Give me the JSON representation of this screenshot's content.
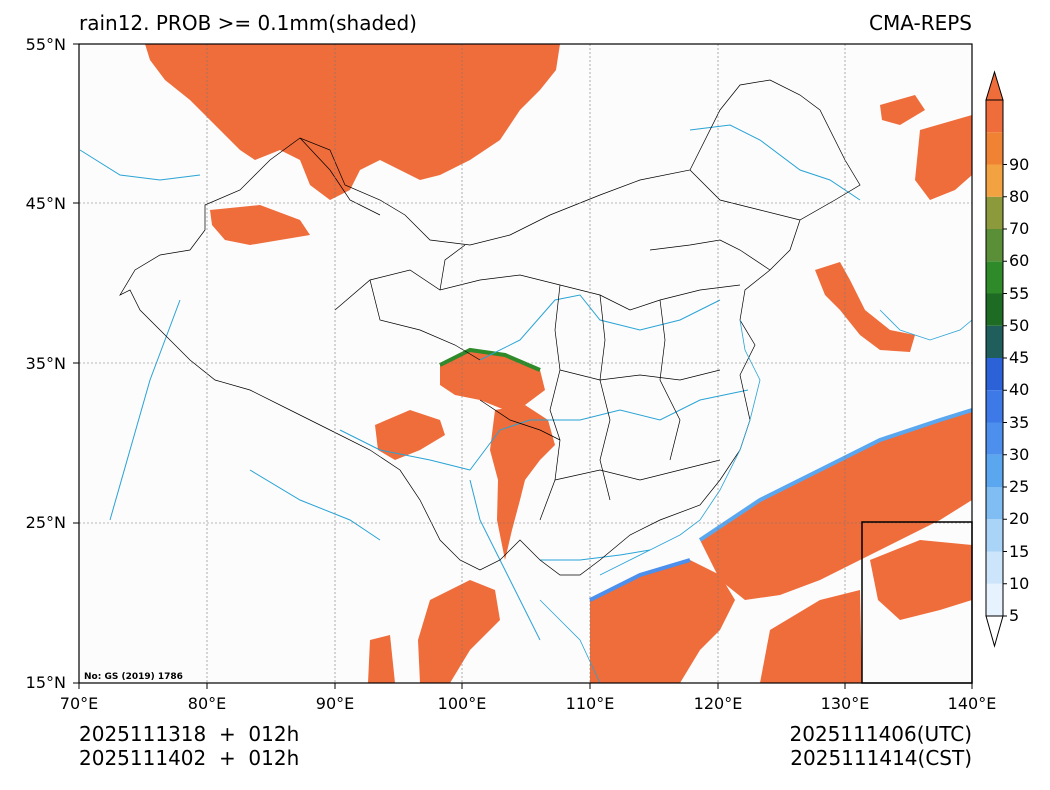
{
  "header": {
    "title": "rain12. PROB >= 0.1mm(shaded)",
    "model": "CMA-REPS"
  },
  "axes": {
    "lat_ticks": [
      "55°N",
      "45°N",
      "35°N",
      "25°N",
      "15°N"
    ],
    "lon_ticks": [
      "70°E",
      "80°E",
      "90°E",
      "100°E",
      "110°E",
      "120°E",
      "130°E",
      "140°E"
    ]
  },
  "map": {
    "approval_note": "No: GS (2019) 1786",
    "colors": {
      "high_prob": "#ef6c3b",
      "river": "#29a3d6",
      "border": "#000000",
      "grid": "#777777",
      "background": "#fcfcfc"
    }
  },
  "colorbar": {
    "levels": [
      "5",
      "10",
      "15",
      "20",
      "25",
      "30",
      "35",
      "40",
      "45",
      "50",
      "55",
      "60",
      "70",
      "80",
      "90"
    ],
    "colors": [
      "#e6f2fd",
      "#cde5fb",
      "#a9d3f7",
      "#7fbdf3",
      "#5aa7ef",
      "#4c8fec",
      "#3d7ae8",
      "#2c62d8",
      "#1f5e5a",
      "#1e6b23",
      "#2f8a2a",
      "#5a8f38",
      "#8c9a3c",
      "#f3a241",
      "#f08233",
      "#ef6c3b"
    ]
  },
  "footer": {
    "init_utc": "2025111318  +  012h",
    "init_cst": "2025111402  +  012h",
    "valid_utc": "2025111406(UTC)",
    "valid_cst": "2025111414(CST)"
  }
}
